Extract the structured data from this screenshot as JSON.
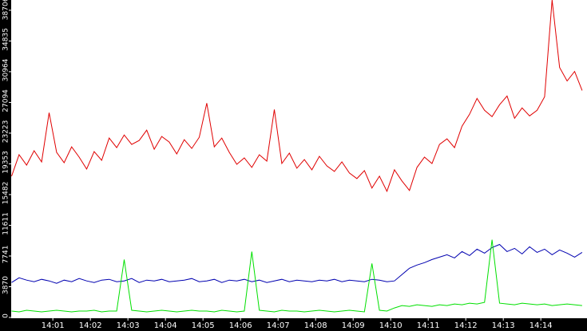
{
  "chart_data": {
    "type": "line",
    "x": [
      839.9,
      840.1,
      840.3,
      840.5,
      840.7,
      840.9,
      841.1,
      841.3,
      841.5,
      841.7,
      841.9,
      842.1,
      842.3,
      842.5,
      842.7,
      842.9,
      843.1,
      843.3,
      843.5,
      843.7,
      843.9,
      844.1,
      844.3,
      844.5,
      844.7,
      844.9,
      845.1,
      845.3,
      845.5,
      845.7,
      845.9,
      846.1,
      846.3,
      846.5,
      846.7,
      846.9,
      847.1,
      847.3,
      847.5,
      847.7,
      847.9,
      848.1,
      848.3,
      848.5,
      848.7,
      848.9,
      849.1,
      849.3,
      849.5,
      849.7,
      849.9,
      850.1,
      850.3,
      850.5,
      850.7,
      850.9,
      851.1,
      851.3,
      851.5,
      851.7,
      851.9,
      852.1,
      852.3,
      852.5,
      852.7,
      852.9,
      853.1,
      853.3,
      853.5,
      853.7,
      853.9,
      854.1,
      854.3,
      854.5,
      854.7,
      854.9,
      855.1
    ],
    "series": [
      {
        "color": "#e00000",
        "values": [
          17800,
          20500,
          19200,
          21000,
          19600,
          25800,
          20800,
          19500,
          21500,
          20200,
          18700,
          20900,
          19800,
          22600,
          21400,
          23000,
          21800,
          22300,
          23600,
          21200,
          22800,
          22100,
          20600,
          22400,
          21300,
          22700,
          27000,
          21500,
          22600,
          20800,
          19300,
          20100,
          18900,
          20500,
          19700,
          26200,
          19400,
          20700,
          18800,
          19900,
          18600,
          20300,
          19100,
          18400,
          19600,
          18200,
          17500,
          18500,
          16300,
          17800,
          15900,
          18600,
          17200,
          16000,
          18900,
          20200,
          19400,
          21800,
          22500,
          21400,
          24100,
          25600,
          27600,
          26100,
          25300,
          26800,
          27900,
          25100,
          26400,
          25400,
          26100,
          27800,
          40000,
          31500,
          29800,
          31000,
          28600
        ]
      },
      {
        "color": "#0000b0",
        "values": [
          4400,
          5000,
          4700,
          4500,
          4800,
          4600,
          4300,
          4700,
          4500,
          4900,
          4600,
          4400,
          4700,
          4800,
          4500,
          4600,
          4900,
          4400,
          4700,
          4600,
          4800,
          4500,
          4600,
          4700,
          4900,
          4500,
          4600,
          4800,
          4400,
          4700,
          4600,
          4800,
          4500,
          4700,
          4400,
          4600,
          4800,
          4500,
          4700,
          4600,
          4500,
          4700,
          4600,
          4800,
          4500,
          4700,
          4600,
          4500,
          4800,
          4700,
          4500,
          4600,
          5400,
          6200,
          6600,
          6900,
          7300,
          7600,
          7900,
          7500,
          8300,
          7800,
          8600,
          8100,
          8800,
          9200,
          8300,
          8700,
          8000,
          8900,
          8200,
          8600,
          7900,
          8500,
          8100,
          7600,
          8200
        ]
      },
      {
        "color": "#00e000",
        "values": [
          800,
          700,
          900,
          800,
          700,
          800,
          900,
          800,
          700,
          800,
          800,
          900,
          700,
          800,
          800,
          7300,
          900,
          800,
          700,
          800,
          900,
          800,
          700,
          800,
          900,
          800,
          800,
          700,
          900,
          800,
          700,
          800,
          8300,
          900,
          800,
          700,
          900,
          800,
          800,
          700,
          800,
          900,
          800,
          700,
          800,
          900,
          800,
          700,
          6800,
          900,
          800,
          1200,
          1500,
          1400,
          1600,
          1500,
          1400,
          1600,
          1500,
          1700,
          1600,
          1800,
          1700,
          1900,
          9800,
          1800,
          1700,
          1600,
          1800,
          1700,
          1600,
          1700,
          1500,
          1600,
          1700,
          1600,
          1500
        ]
      }
    ],
    "xlim": [
      839.89,
      855.23
    ],
    "xticks": [
      {
        "value": 841,
        "label": "14:01"
      },
      {
        "value": 842,
        "label": "14:02"
      },
      {
        "value": 843,
        "label": "14:03"
      },
      {
        "value": 844,
        "label": "14:04"
      },
      {
        "value": 845,
        "label": "14:05"
      },
      {
        "value": 846,
        "label": "14:06"
      },
      {
        "value": 847,
        "label": "14:07"
      },
      {
        "value": 848,
        "label": "14:08"
      },
      {
        "value": 849,
        "label": "14:09"
      },
      {
        "value": 850,
        "label": "14:10"
      },
      {
        "value": 851,
        "label": "14:11"
      },
      {
        "value": 852,
        "label": "14:12"
      },
      {
        "value": 853,
        "label": "14:13"
      },
      {
        "value": 854,
        "label": "14:14"
      }
    ],
    "ylim": [
      0,
      40000
    ],
    "yticks": [
      0,
      3870,
      7741,
      11611,
      15482,
      19353,
      23223,
      27094,
      30964,
      34835,
      38706
    ],
    "grid": false
  }
}
